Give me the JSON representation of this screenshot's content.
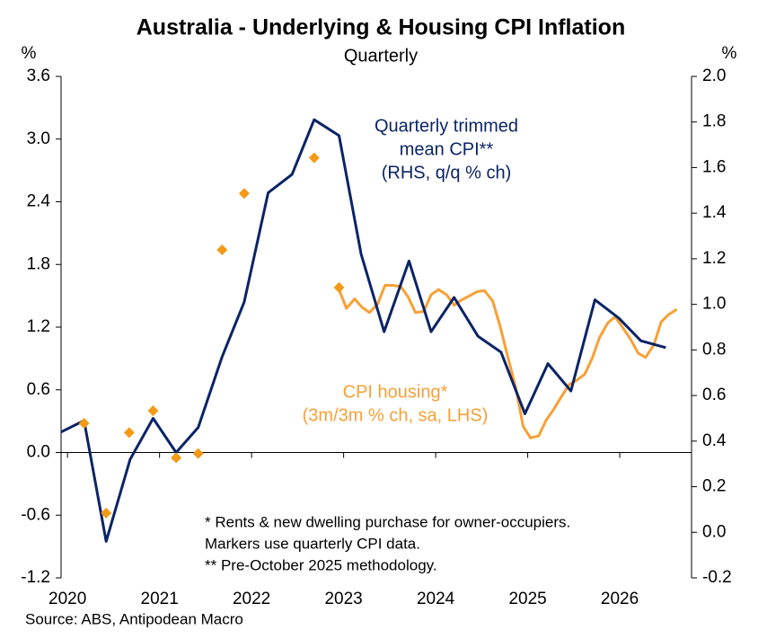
{
  "chart_data": {
    "type": "line",
    "title": "Australia - Underlying & Housing CPI Inflation",
    "subtitle": "Quarterly",
    "y_unit": "%",
    "y2_unit": "%",
    "xlim": [
      2019.93,
      2026.78
    ],
    "xticks": [
      2020,
      2021,
      2022,
      2023,
      2024,
      2025,
      2026
    ],
    "ylim": [
      -1.2,
      3.6
    ],
    "yticks": [
      -1.2,
      -0.6,
      {
        "value": 0,
        "label": "0.0"
      },
      0.6,
      1.2,
      1.8,
      2.4,
      {
        "value": 3,
        "label": "3.0"
      },
      3.6
    ],
    "y2lim": [
      -0.2,
      2.0
    ],
    "y2ticks": [
      -0.2,
      {
        "value": 0,
        "label": "0.0"
      },
      0.2,
      0.4,
      0.6,
      0.8,
      {
        "value": 1,
        "label": "1.0"
      },
      1.2,
      1.4,
      1.6,
      1.8,
      {
        "value": 2,
        "label": "2.0"
      }
    ],
    "grid": false,
    "series": [
      {
        "axis": "y2",
        "mode": "line",
        "color": "#0b2466",
        "x": [
          2019.93,
          2020.18,
          2020.42,
          2020.68,
          2020.93,
          2021.18,
          2021.42,
          2021.68,
          2021.92,
          2022.18,
          2022.44,
          2022.68,
          2022.95,
          2023.19,
          2023.44,
          2023.71,
          2023.95,
          2024.2,
          2024.46,
          2024.71,
          2024.97,
          2025.22,
          2025.47,
          2025.73,
          2025.99,
          2026.23,
          2026.5
        ],
        "values": [
          0.44,
          0.49,
          -0.04,
          0.32,
          0.5,
          0.35,
          0.46,
          0.77,
          1.01,
          1.49,
          1.57,
          1.81,
          1.74,
          1.22,
          0.88,
          1.19,
          0.88,
          1.03,
          0.86,
          0.79,
          0.52,
          0.74,
          0.62,
          1.02,
          0.94,
          0.84,
          0.81
        ]
      },
      {
        "axis": "y",
        "mode": "line",
        "color": "#f7a037",
        "x": [
          2022.95,
          2023.03,
          2023.12,
          2023.2,
          2023.28,
          2023.37,
          2023.45,
          2023.53,
          2023.62,
          2023.7,
          2023.78,
          2023.87,
          2023.95,
          2024.03,
          2024.12,
          2024.2,
          2024.28,
          2024.37,
          2024.45,
          2024.53,
          2024.62,
          2024.7,
          2024.78,
          2024.87,
          2024.95,
          2025.03,
          2025.12,
          2025.2,
          2025.28,
          2025.37,
          2025.45,
          2025.53,
          2025.62,
          2025.7,
          2025.78,
          2025.87,
          2025.95,
          2026.03,
          2026.12,
          2026.2,
          2026.28,
          2026.37,
          2026.45,
          2026.53,
          2026.62
        ],
        "values": [
          1.56,
          1.38,
          1.47,
          1.39,
          1.34,
          1.42,
          1.6,
          1.6,
          1.59,
          1.49,
          1.34,
          1.35,
          1.51,
          1.56,
          1.51,
          1.41,
          1.46,
          1.5,
          1.54,
          1.55,
          1.45,
          1.21,
          0.93,
          0.62,
          0.25,
          0.14,
          0.16,
          0.31,
          0.41,
          0.54,
          0.65,
          0.69,
          0.75,
          0.9,
          1.1,
          1.24,
          1.3,
          1.2,
          1.08,
          0.95,
          0.91,
          1.03,
          1.25,
          1.32,
          1.37
        ]
      },
      {
        "axis": "y",
        "mode": "marker",
        "color": "#f39a16",
        "x": [
          2020.18,
          2020.42,
          2020.67,
          2020.93,
          2021.18,
          2021.42,
          2021.68,
          2021.92,
          2022.68,
          2022.95
        ],
        "values": [
          0.28,
          -0.58,
          0.19,
          0.4,
          -0.05,
          -0.01,
          1.94,
          2.48,
          2.82,
          1.58
        ]
      }
    ],
    "annotations": [
      {
        "lines": [
          "Quarterly trimmed",
          "mean CPI**",
          "(RHS, q/q % ch)"
        ],
        "color": "#0b2466"
      },
      {
        "lines": [
          "CPI housing*",
          "(3m/3m % ch, sa, LHS)"
        ],
        "color": "#f7a037"
      }
    ],
    "notes": [
      "* Rents & new dwelling purchase for owner-occupiers.",
      "Markers use quarterly CPI data.",
      "** Pre-October 2025 methodology."
    ],
    "source": "Source: ABS, Antipodean Macro"
  }
}
